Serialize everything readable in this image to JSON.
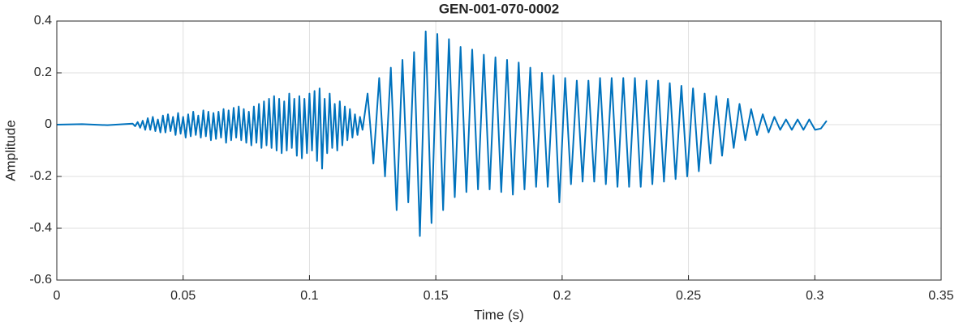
{
  "chart_data": {
    "type": "line",
    "title": "GEN-001-070-0002",
    "xlabel": "Time (s)",
    "ylabel": "Amplitude",
    "color": "#0072BD",
    "grid": true,
    "xlim": [
      0,
      0.35
    ],
    "xticks": [
      0,
      0.05,
      0.1,
      0.15,
      0.2,
      0.25,
      0.3,
      0.35
    ],
    "ylim": [
      -0.6,
      0.4
    ],
    "yticks": [
      -0.6,
      -0.4,
      -0.2,
      0,
      0.2,
      0.4
    ],
    "x": [
      0,
      0.01,
      0.02,
      0.03,
      0.031,
      0.032,
      0.033,
      0.034,
      0.035,
      0.036,
      0.037,
      0.038,
      0.039,
      0.04,
      0.041,
      0.042,
      0.043,
      0.044,
      0.045,
      0.046,
      0.047,
      0.048,
      0.049,
      0.05,
      0.051,
      0.052,
      0.053,
      0.054,
      0.055,
      0.056,
      0.057,
      0.058,
      0.059,
      0.06,
      0.061,
      0.062,
      0.063,
      0.064,
      0.065,
      0.066,
      0.067,
      0.068,
      0.069,
      0.07,
      0.071,
      0.072,
      0.073,
      0.074,
      0.075,
      0.076,
      0.077,
      0.078,
      0.079,
      0.08,
      0.081,
      0.082,
      0.083,
      0.084,
      0.085,
      0.086,
      0.087,
      0.088,
      0.089,
      0.09,
      0.091,
      0.092,
      0.093,
      0.094,
      0.095,
      0.096,
      0.097,
      0.098,
      0.099,
      0.1,
      0.101,
      0.102,
      0.103,
      0.104,
      0.105,
      0.106,
      0.107,
      0.108,
      0.109,
      0.11,
      0.111,
      0.112,
      0.113,
      0.114,
      0.115,
      0.116,
      0.117,
      0.118,
      0.119,
      0.12,
      0.121,
      0.123,
      0.1253,
      0.1276,
      0.1299,
      0.1322,
      0.1345,
      0.1368,
      0.1391,
      0.1414,
      0.1437,
      0.146,
      0.1483,
      0.1506,
      0.1529,
      0.1552,
      0.1575,
      0.1598,
      0.1621,
      0.1644,
      0.1667,
      0.169,
      0.1713,
      0.1736,
      0.1759,
      0.1782,
      0.1805,
      0.1828,
      0.1851,
      0.1874,
      0.1897,
      0.192,
      0.1943,
      0.1966,
      0.1989,
      0.2012,
      0.2035,
      0.2058,
      0.2081,
      0.2104,
      0.2127,
      0.215,
      0.2173,
      0.2196,
      0.2219,
      0.2242,
      0.2265,
      0.2288,
      0.2311,
      0.2334,
      0.2357,
      0.238,
      0.2403,
      0.2426,
      0.2449,
      0.2472,
      0.2495,
      0.2518,
      0.2541,
      0.2564,
      0.2587,
      0.261,
      0.2633,
      0.2656,
      0.2679,
      0.2702,
      0.2725,
      0.2748,
      0.2771,
      0.2794,
      0.2817,
      0.284,
      0.2863,
      0.2886,
      0.2909,
      0.2932,
      0.2955,
      0.2978,
      0.3001,
      0.3024,
      0.3047
    ],
    "values": [
      0,
      0.002,
      -0.002,
      0.004,
      -0.006,
      0.01,
      -0.012,
      0.015,
      -0.02,
      0.025,
      -0.02,
      0.03,
      -0.025,
      0.02,
      -0.03,
      0.035,
      -0.03,
      0.04,
      -0.025,
      0.03,
      -0.04,
      0.045,
      -0.035,
      0.03,
      -0.05,
      0.04,
      -0.045,
      0.05,
      -0.04,
      0.035,
      -0.05,
      0.055,
      -0.045,
      0.05,
      -0.06,
      0.045,
      -0.055,
      0.05,
      -0.05,
      0.06,
      -0.07,
      0.055,
      -0.06,
      0.065,
      -0.05,
      0.07,
      -0.06,
      0.06,
      -0.07,
      0.05,
      -0.08,
      0.07,
      -0.07,
      0.08,
      -0.09,
      0.09,
      -0.08,
      0.1,
      -0.09,
      0.11,
      -0.1,
      0.1,
      -0.11,
      0.09,
      -0.1,
      0.12,
      -0.09,
      0.1,
      -0.12,
      0.11,
      -0.13,
      0.1,
      -0.11,
      0.12,
      -0.1,
      0.13,
      -0.14,
      0.14,
      -0.17,
      0.1,
      -0.11,
      0.12,
      -0.09,
      0.08,
      -0.1,
      0.09,
      -0.08,
      0.07,
      -0.06,
      0.06,
      -0.05,
      0.04,
      -0.04,
      0.03,
      -0.02,
      0.12,
      -0.15,
      0.18,
      -0.2,
      0.22,
      -0.33,
      0.25,
      -0.3,
      0.28,
      -0.43,
      0.36,
      -0.38,
      0.35,
      -0.33,
      0.33,
      -0.28,
      0.3,
      -0.26,
      0.29,
      -0.25,
      0.27,
      -0.25,
      0.26,
      -0.26,
      0.25,
      -0.27,
      0.24,
      -0.25,
      0.22,
      -0.24,
      0.2,
      -0.24,
      0.19,
      -0.3,
      0.18,
      -0.23,
      0.17,
      -0.22,
      0.17,
      -0.22,
      0.18,
      -0.23,
      0.18,
      -0.24,
      0.18,
      -0.24,
      0.18,
      -0.24,
      0.17,
      -0.23,
      0.17,
      -0.22,
      0.16,
      -0.21,
      0.15,
      -0.2,
      0.14,
      -0.18,
      0.12,
      -0.15,
      0.11,
      -0.12,
      0.1,
      -0.09,
      0.08,
      -0.06,
      0.06,
      -0.04,
      0.04,
      -0.03,
      0.03,
      -0.02,
      0.02,
      -0.02,
      0.02,
      -0.02,
      0.02,
      -0.02,
      -0.015,
      0.015
    ]
  }
}
